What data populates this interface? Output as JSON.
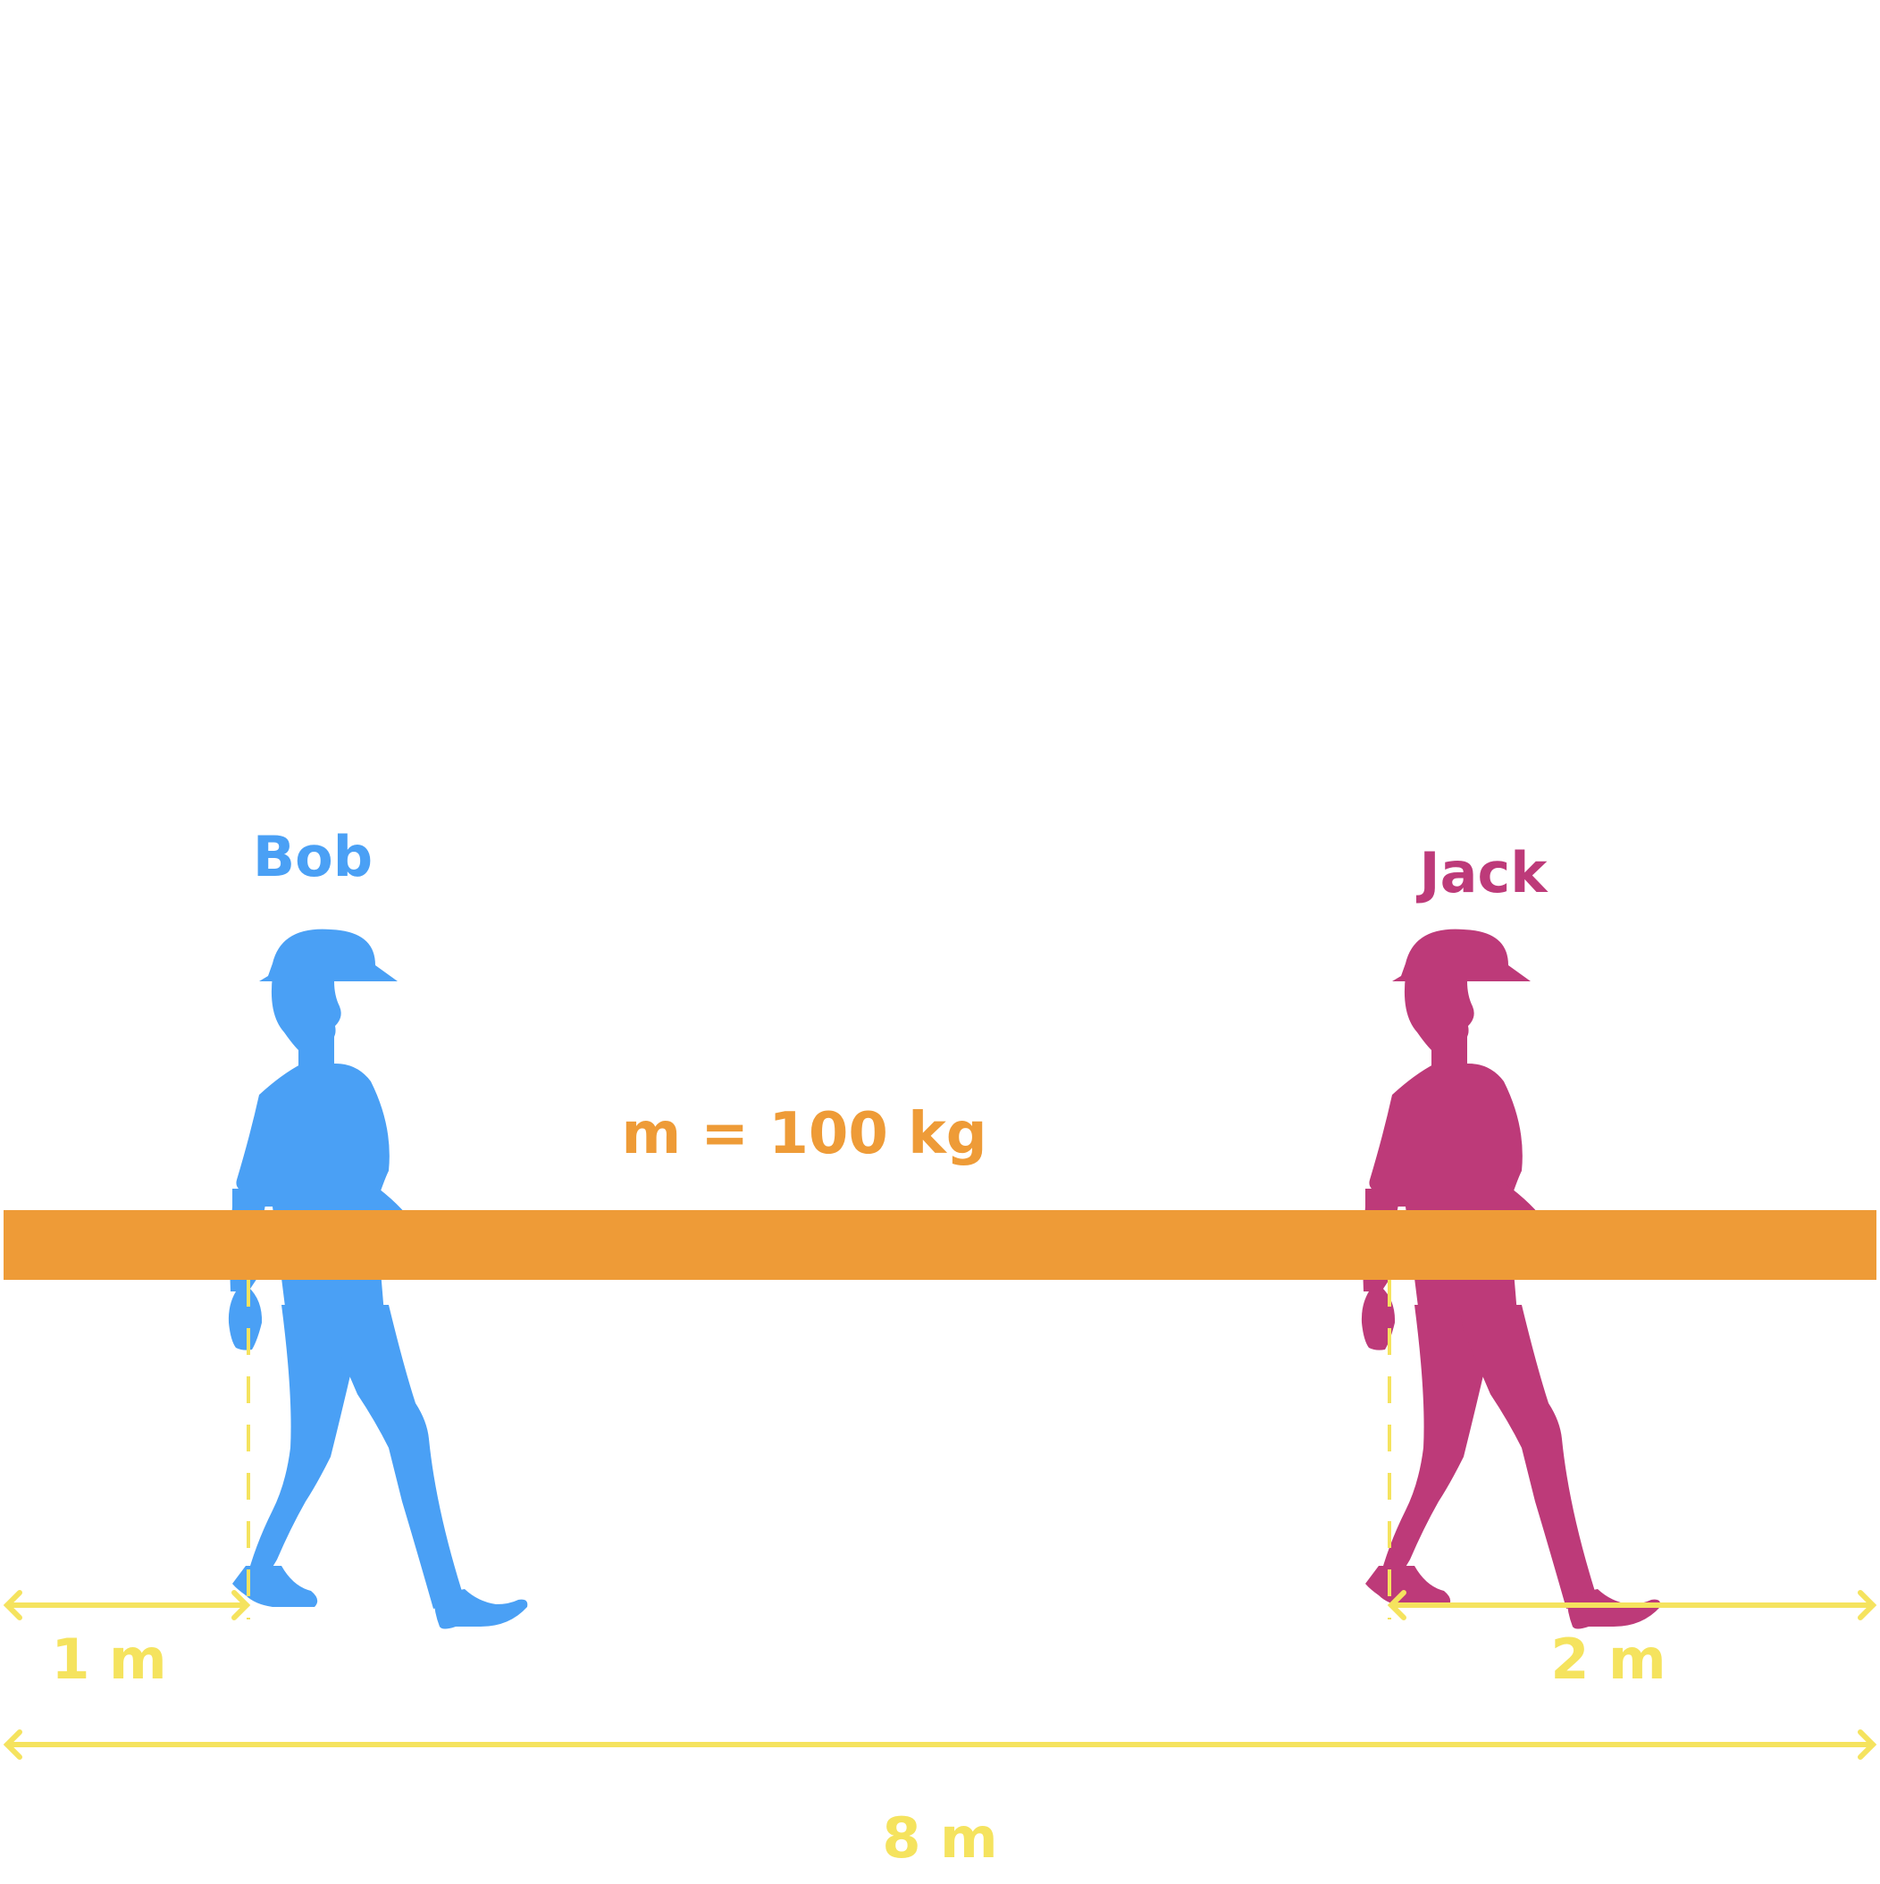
{
  "persons": [
    {
      "name": "Bob",
      "color": "#4aa0f5"
    },
    {
      "name": "Jack",
      "color": "#bd3a79"
    }
  ],
  "beam": {
    "mass_label": "m = 100 kg",
    "color": "#ee9b37"
  },
  "dimensions": {
    "color": "#f5e35e",
    "left": "1 m",
    "right": "2 m",
    "total": "8 m"
  }
}
